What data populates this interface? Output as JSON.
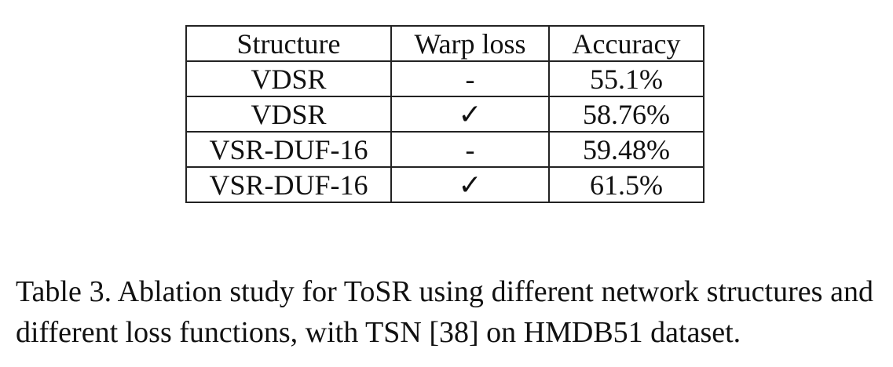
{
  "table": {
    "headers": [
      "Structure",
      "Warp loss",
      "Accuracy"
    ],
    "rows": [
      {
        "structure": "VDSR",
        "warp_loss": "-",
        "accuracy": "55.1%",
        "bold": false
      },
      {
        "structure": "VDSR",
        "warp_loss": "✓",
        "accuracy": "58.76%",
        "bold": false
      },
      {
        "structure": "VSR-DUF-16",
        "warp_loss": "-",
        "accuracy": "59.48%",
        "bold": false
      },
      {
        "structure": "VSR-DUF-16",
        "warp_loss": "✓",
        "accuracy": "61.5%",
        "bold": true
      }
    ]
  },
  "caption": "Table 3. Ablation study for ToSR using different network structures and different loss functions, with TSN [38] on HMDB51 dataset."
}
